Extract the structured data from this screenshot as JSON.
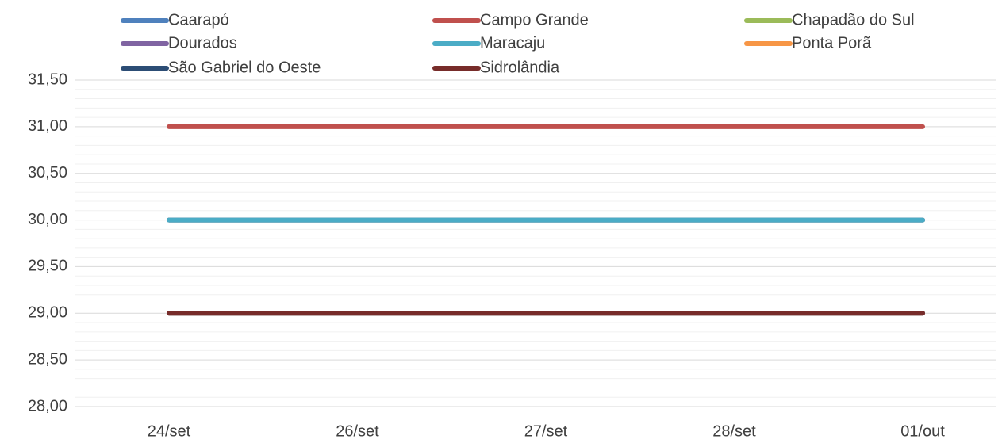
{
  "chart_data": {
    "type": "line",
    "categories": [
      "24/set",
      "26/set",
      "27/set",
      "28/set",
      "01/out"
    ],
    "series": [
      {
        "name": "Caarapó",
        "color": "#4f81bd",
        "values": [
          30,
          30,
          30,
          30,
          30
        ]
      },
      {
        "name": "Campo Grande",
        "color": "#c0504d",
        "values": [
          31,
          31,
          31,
          31,
          31
        ]
      },
      {
        "name": "Chapadão do Sul",
        "color": "#9bbb59",
        "values": [
          30,
          30,
          30,
          30,
          30
        ]
      },
      {
        "name": "Dourados",
        "color": "#8064a2",
        "values": [
          30,
          30,
          30,
          30,
          30
        ]
      },
      {
        "name": "Maracaju",
        "color": "#4bacc6",
        "values": [
          30,
          30,
          30,
          30,
          30
        ]
      },
      {
        "name": "Ponta Porã",
        "color": "#f79646",
        "values": [
          29,
          29,
          29,
          29,
          29
        ]
      },
      {
        "name": "São Gabriel do Oeste",
        "color": "#2c4d75",
        "values": [
          29,
          29,
          29,
          29,
          29
        ]
      },
      {
        "name": "Sidrolândia",
        "color": "#772c2a",
        "values": [
          29,
          29,
          29,
          29,
          29
        ]
      }
    ],
    "ylim": [
      28,
      31.5
    ],
    "yticks": [
      {
        "value": 28,
        "label": "28,00"
      },
      {
        "value": 28.5,
        "label": "28,50"
      },
      {
        "value": 29,
        "label": "29,00"
      },
      {
        "value": 29.5,
        "label": "29,50"
      },
      {
        "value": 30,
        "label": "30,00"
      },
      {
        "value": 30.5,
        "label": "30,50"
      },
      {
        "value": 31,
        "label": "31,00"
      },
      {
        "value": 31.5,
        "label": "31,50"
      }
    ],
    "grid": true,
    "legend": "top"
  }
}
